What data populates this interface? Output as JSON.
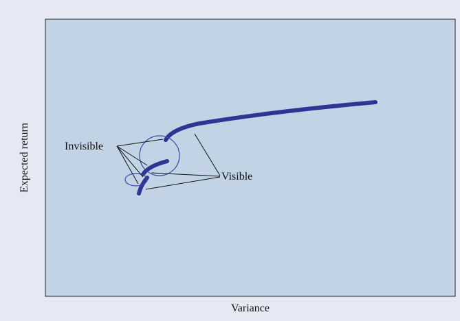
{
  "axes": {
    "y_label": "Expected return",
    "x_label": "Variance"
  },
  "annotations": {
    "invisible": "Invisible",
    "visible": "Visible"
  }
}
